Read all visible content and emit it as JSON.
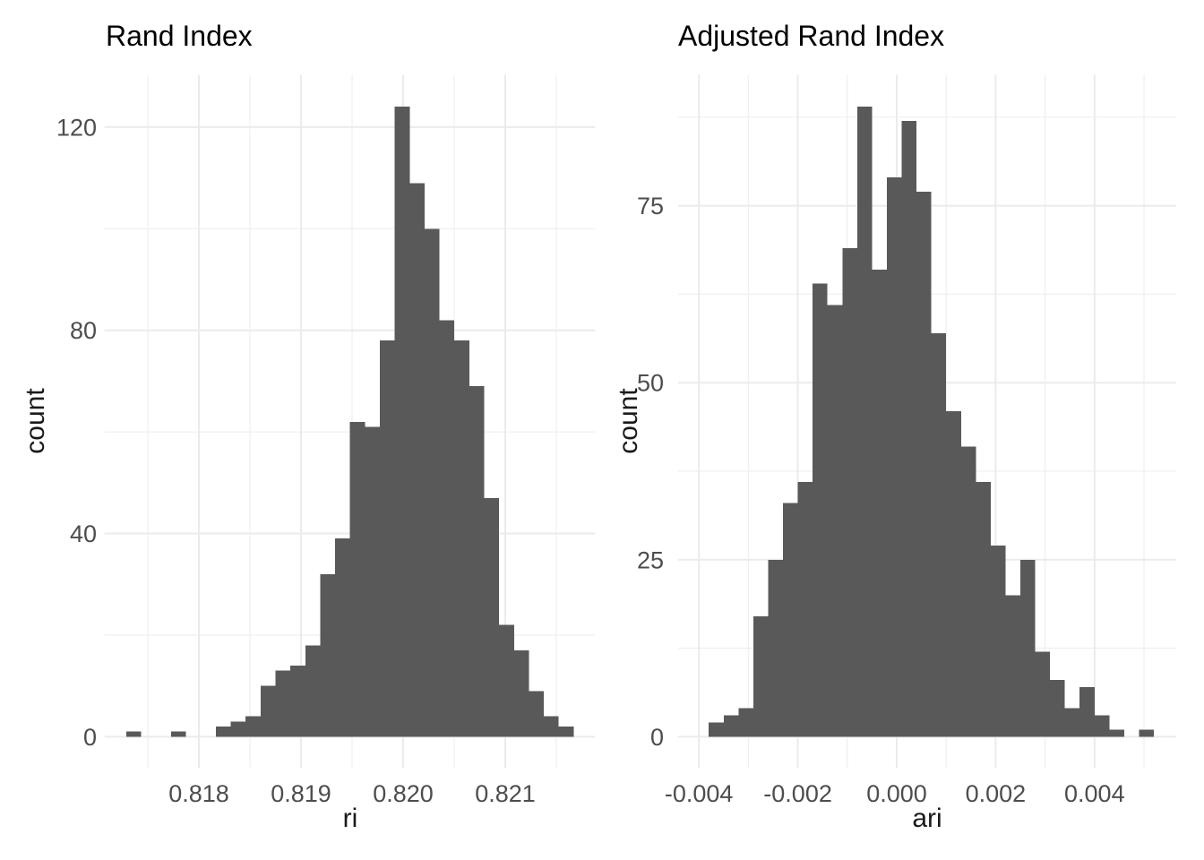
{
  "style": {
    "background": "#FFFFFF",
    "bar_color": "#595959",
    "grid_major_color": "#EBEBEB",
    "grid_minor_color": "#F0F0F0",
    "tick_label_color": "#4D4D4D",
    "title_color": "#000000",
    "axis_title_color": "#1A1A1A"
  },
  "chart_data": [
    {
      "type": "bar",
      "subtype": "histogram",
      "title": "Rand Index",
      "xlabel": "ri",
      "ylabel": "count",
      "grid": true,
      "legend": null,
      "bin_start": 0.81729,
      "bin_width": 0.000146,
      "counts": [
        1,
        0,
        0,
        1,
        0,
        0,
        2,
        3,
        4,
        10,
        13,
        14,
        18,
        32,
        39,
        62,
        61,
        78,
        124,
        109,
        100,
        82,
        78,
        69,
        47,
        22,
        17,
        9,
        4,
        2
      ],
      "xlim": [
        0.817076,
        0.82188
      ],
      "ylim": [
        -6.2,
        130.3
      ],
      "x_ticks": [
        {
          "v": 0.818,
          "label": "0.818"
        },
        {
          "v": 0.819,
          "label": "0.819"
        },
        {
          "v": 0.82,
          "label": "0.820"
        },
        {
          "v": 0.821,
          "label": "0.821"
        }
      ],
      "x_minor": [
        0.8175,
        0.8185,
        0.8195,
        0.8205,
        0.8215
      ],
      "y_ticks": [
        {
          "v": 0,
          "label": "0"
        },
        {
          "v": 40,
          "label": "40"
        },
        {
          "v": 80,
          "label": "80"
        },
        {
          "v": 120,
          "label": "120"
        }
      ],
      "y_minor": [
        20,
        60,
        100
      ]
    },
    {
      "type": "bar",
      "subtype": "histogram",
      "title": "Adjusted Rand Index",
      "xlabel": "ari",
      "ylabel": "count",
      "grid": true,
      "legend": null,
      "bin_start": -0.0038,
      "bin_width": 0.0003,
      "counts": [
        2,
        3,
        4,
        17,
        25,
        33,
        36,
        64,
        61,
        69,
        89,
        66,
        79,
        87,
        77,
        57,
        46,
        41,
        36,
        27,
        20,
        25,
        12,
        8,
        4,
        7,
        3,
        1,
        0,
        1
      ],
      "xlim": [
        -0.00442,
        0.005652
      ],
      "ylim": [
        -4.45,
        93.5
      ],
      "x_ticks": [
        {
          "v": -0.004,
          "label": "-0.004"
        },
        {
          "v": -0.002,
          "label": "-0.002"
        },
        {
          "v": 0.0,
          "label": "0.000"
        },
        {
          "v": 0.002,
          "label": "0.002"
        },
        {
          "v": 0.004,
          "label": "0.004"
        }
      ],
      "x_minor": [
        -0.003,
        -0.001,
        0.001,
        0.003,
        0.005
      ],
      "y_ticks": [
        {
          "v": 0,
          "label": "0"
        },
        {
          "v": 25,
          "label": "25"
        },
        {
          "v": 50,
          "label": "50"
        },
        {
          "v": 75,
          "label": "75"
        }
      ],
      "y_minor": [
        12.5,
        37.5,
        62.5,
        87.5
      ]
    }
  ]
}
